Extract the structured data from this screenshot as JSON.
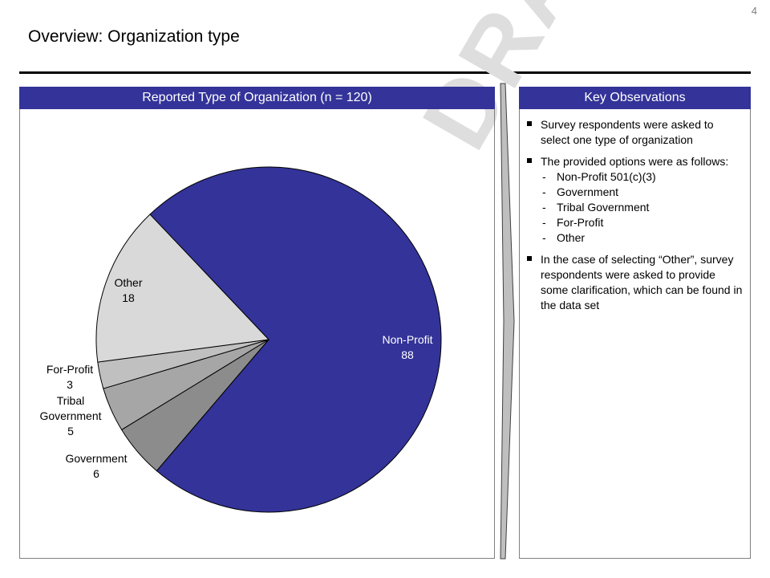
{
  "page_number": "4",
  "title": "Overview: Organization type",
  "left_panel": {
    "header": "Reported Type of Organization (n = 120)"
  },
  "right_panel": {
    "header": "Key Observations",
    "bullets": [
      {
        "text": "Survey respondents were asked to select one type of organization",
        "sub": []
      },
      {
        "text": "The provided options were as follows:",
        "sub": [
          "Non-Profit 501(c)(3)",
          "Government",
          "Tribal Government",
          "For-Profit",
          "Other"
        ]
      },
      {
        "text": "In the case of selecting “Other”, survey respondents were asked to provide some clarification, which can be found in the data set",
        "sub": []
      }
    ]
  },
  "watermark": "DRAFT",
  "chart_data": {
    "type": "pie",
    "title": "Reported Type of Organization (n = 120)",
    "n": 120,
    "slices": [
      {
        "label": "Non-Profit",
        "value": 88,
        "color": "#333399"
      },
      {
        "label": "Government",
        "value": 6,
        "color": "#8c8c8c"
      },
      {
        "label": "Tribal Government",
        "value": 5,
        "color": "#a6a6a6"
      },
      {
        "label": "For-Profit",
        "value": 3,
        "color": "#c0c0c0"
      },
      {
        "label": "Other",
        "value": 18,
        "color": "#d9d9d9"
      }
    ]
  }
}
